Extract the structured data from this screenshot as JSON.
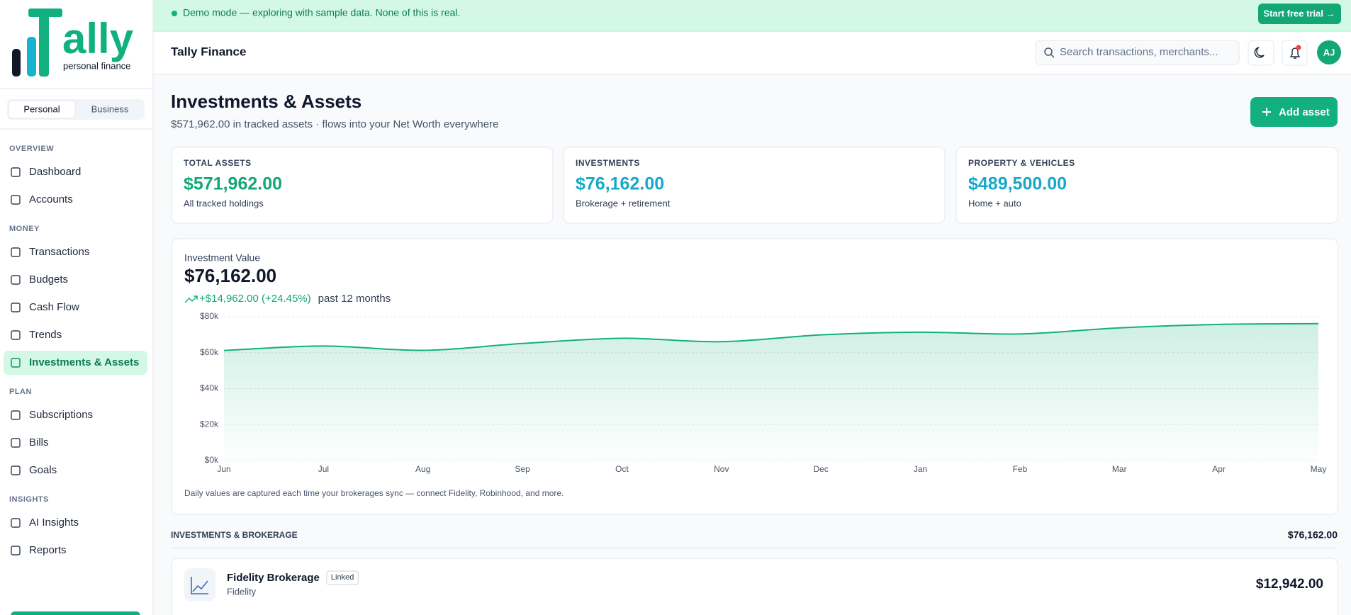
{
  "banner": {
    "message": "Demo mode — exploring with sample data. None of this is real.",
    "cta": "Start free trial →"
  },
  "sidebar": {
    "logo": {
      "wordmark": "ally",
      "tagline": "personal finance"
    },
    "modes": [
      "Personal",
      "Business"
    ],
    "sections": [
      {
        "title": "OVERVIEW",
        "items": [
          "Dashboard",
          "Accounts"
        ]
      },
      {
        "title": "MONEY",
        "items": [
          "Transactions",
          "Budgets",
          "Cash Flow",
          "Trends",
          "Investments & Assets"
        ]
      },
      {
        "title": "PLAN",
        "items": [
          "Subscriptions",
          "Bills",
          "Goals"
        ]
      },
      {
        "title": "INSIGHTS",
        "items": [
          "AI Insights",
          "Reports"
        ]
      }
    ]
  },
  "header": {
    "title": "Tally Finance",
    "search_placeholder": "Search transactions, merchants...",
    "avatar": "AJ"
  },
  "page": {
    "title": "Investments & Assets",
    "subtitle": "$571,962.00 in tracked assets · flows into your Net Worth everywhere",
    "action": "Add asset"
  },
  "cards": [
    {
      "label": "TOTAL ASSETS",
      "value": "$571,962.00",
      "note": "All tracked holdings"
    },
    {
      "label": "INVESTMENTS",
      "value": "$76,162.00",
      "note": "Brokerage + retirement"
    },
    {
      "label": "PROPERTY & VEHICLES",
      "value": "$489,500.00",
      "note": "Home + auto"
    }
  ],
  "chart_data": {
    "type": "area",
    "title": "Investment Value",
    "current": "$76,162.00",
    "change": "+$14,962.00 (+24.45%)",
    "period": "past 12 months",
    "categories": [
      "Jun",
      "Jul",
      "Aug",
      "Sep",
      "Oct",
      "Nov",
      "Dec",
      "Jan",
      "Feb",
      "Mar",
      "Apr",
      "May"
    ],
    "values": [
      61200,
      63700,
      61300,
      65100,
      68000,
      66100,
      69900,
      71400,
      70400,
      73800,
      75700,
      76162
    ],
    "ylim": [
      0,
      80000
    ],
    "yticks": [
      {
        "value": 0,
        "label": "$0k"
      },
      {
        "value": 20000,
        "label": "$20k"
      },
      {
        "value": 40000,
        "label": "$40k"
      },
      {
        "value": 60000,
        "label": "$60k"
      },
      {
        "value": 80000,
        "label": "$80k"
      }
    ],
    "color": "#12b07e",
    "grid": true,
    "footnote": "Daily values are captured each time your brokerages sync — connect Fidelity, Robinhood, and more."
  },
  "holdings": {
    "title": "INVESTMENTS & BROKERAGE",
    "total": "$76,162.00",
    "items": [
      {
        "name": "Fidelity Brokerage",
        "badge": "Linked",
        "institution": "Fidelity",
        "amount": "$12,942.00"
      }
    ]
  }
}
